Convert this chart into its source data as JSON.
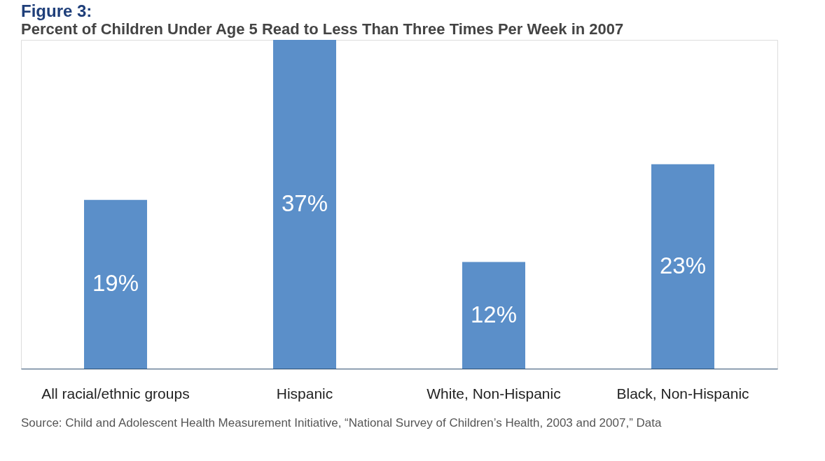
{
  "chart_data": {
    "type": "bar",
    "title": "Figure 3:",
    "subtitle": "Percent of Children Under Age 5 Read to Less Than Three Times Per Week in 2007",
    "categories": [
      "All racial/ethnic groups",
      "Hispanic",
      "White, Non-Hispanic",
      "Black, Non-Hispanic"
    ],
    "values": [
      19,
      37,
      12,
      23
    ],
    "color": "#5b8fc9",
    "value_labels": [
      "19%",
      "37%",
      "12%",
      "23%"
    ],
    "annotations": [
      "Source:  Child and Adolescent Health Measurement Initiative, “National Survey of Children’s Health, 2003 and 2007,” Data"
    ]
  }
}
